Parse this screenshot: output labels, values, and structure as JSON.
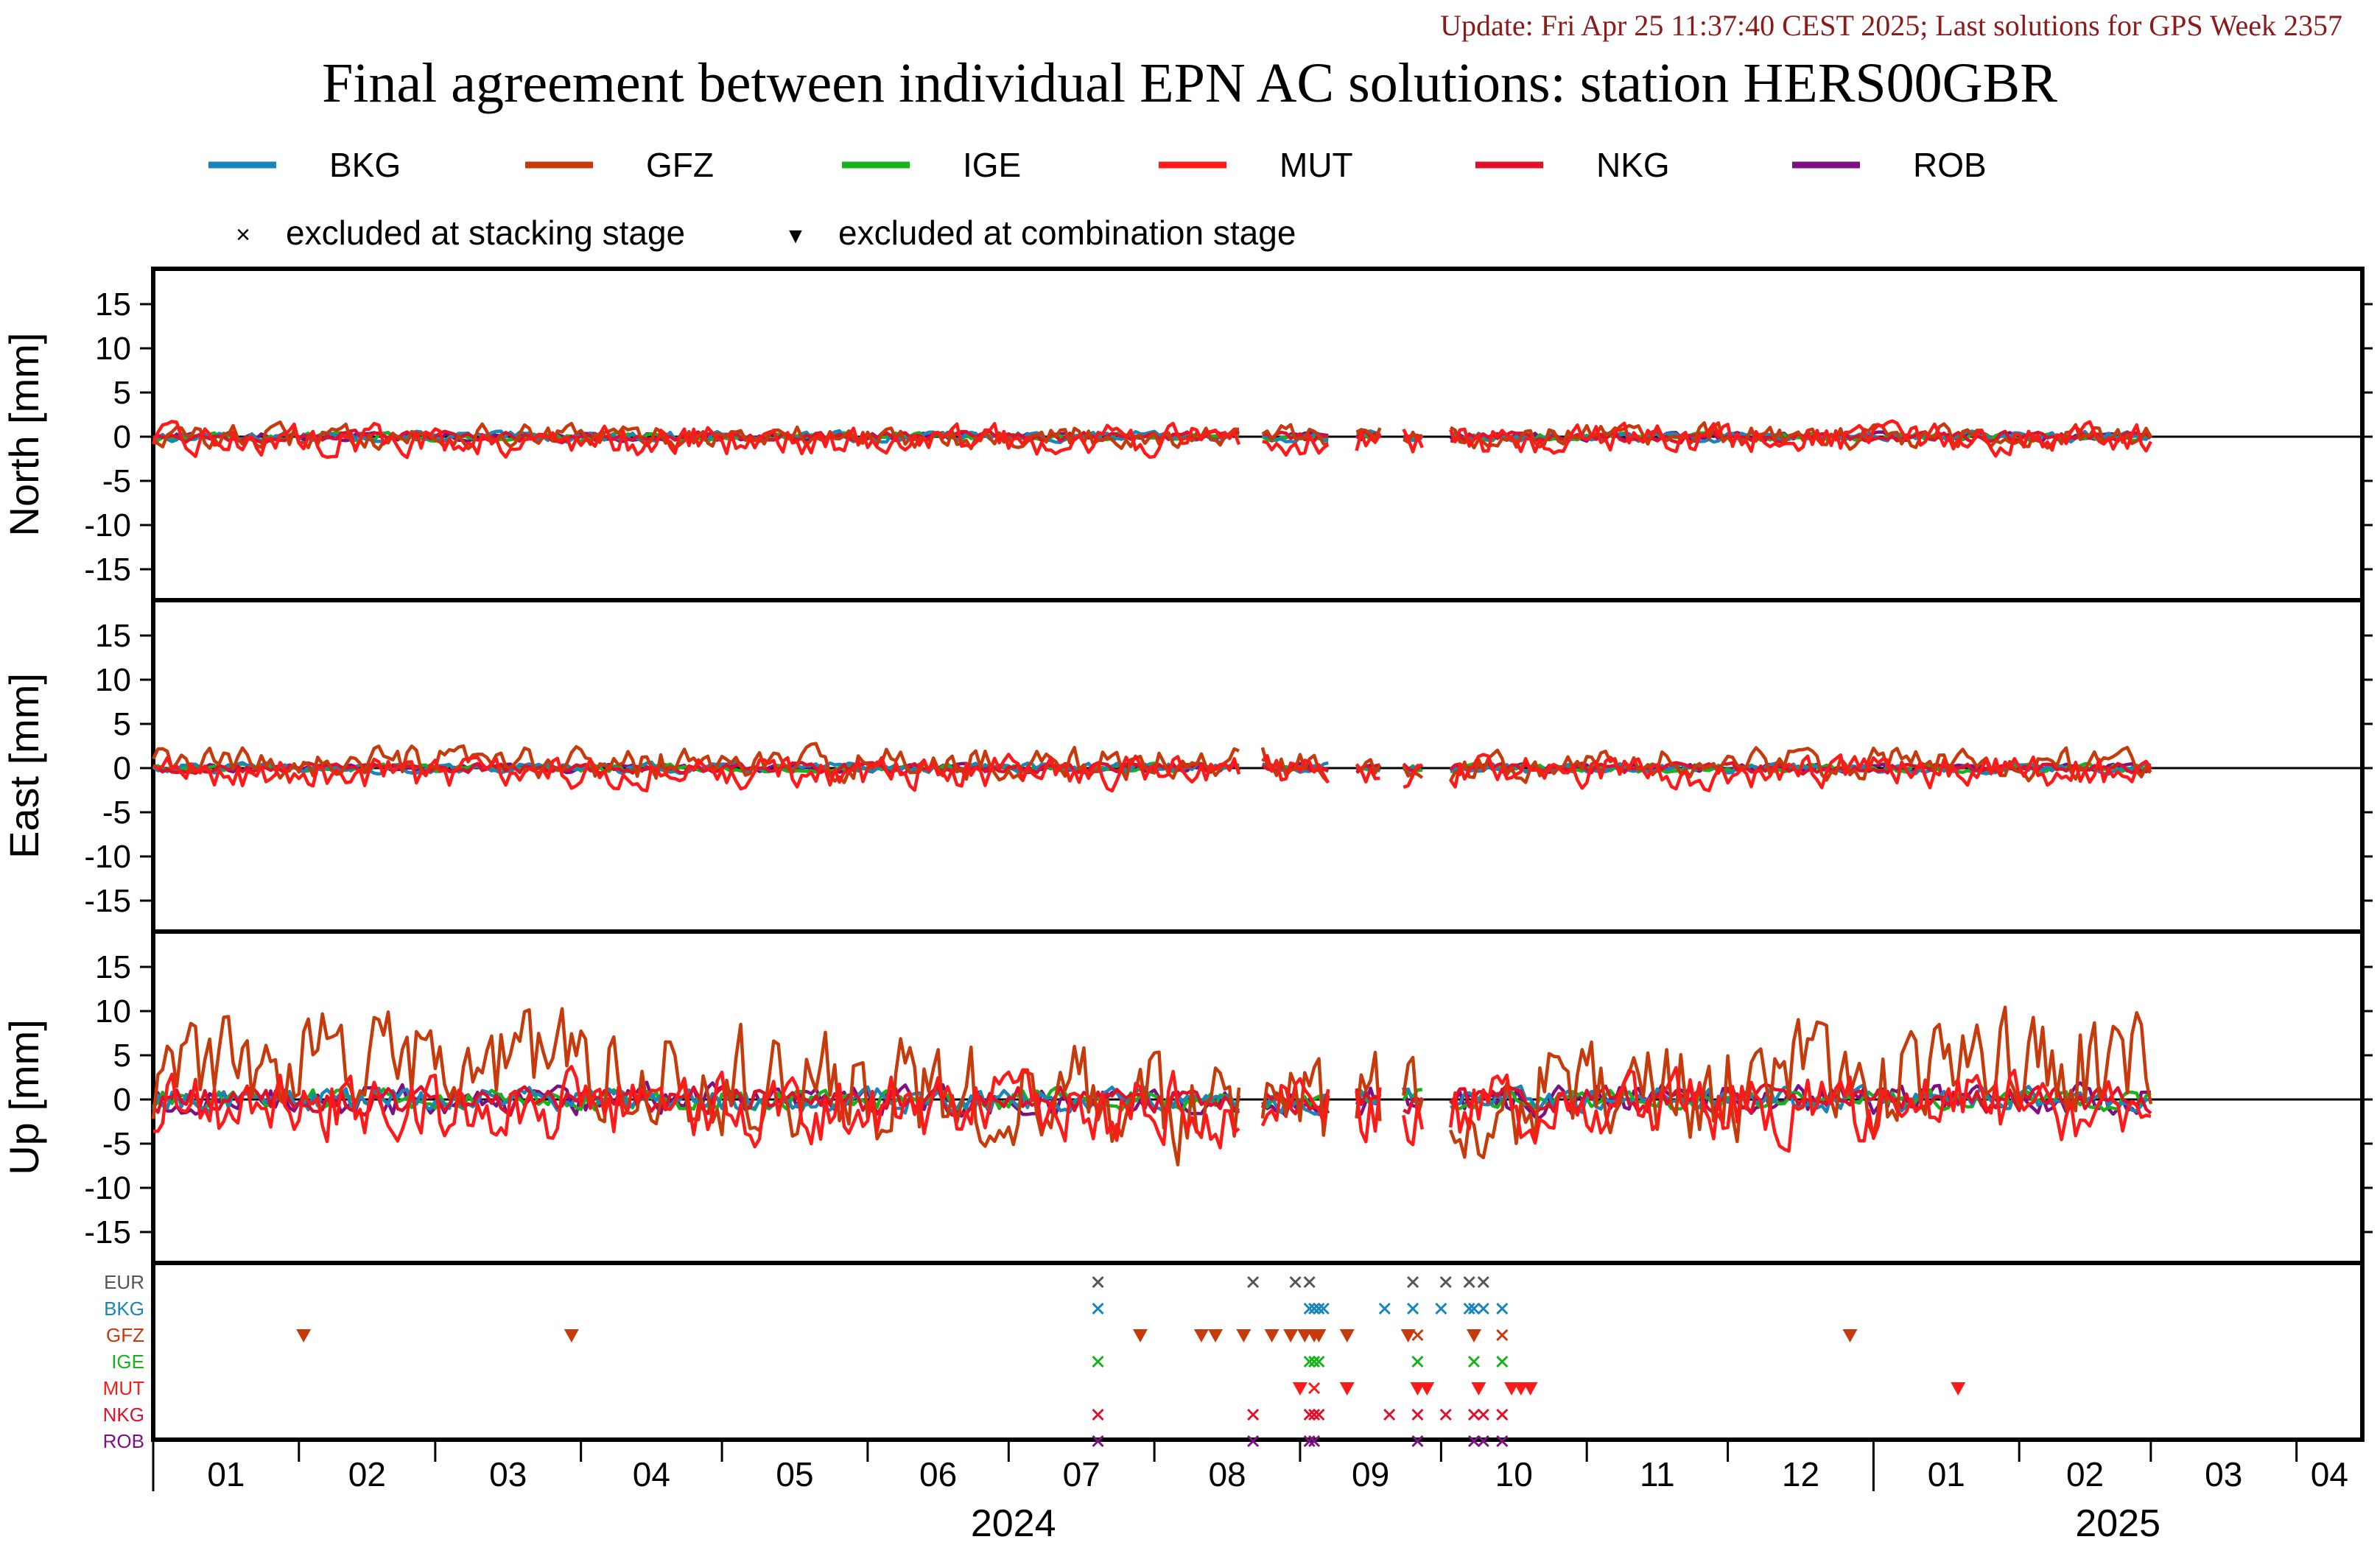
{
  "header": {
    "update_line": "Update: Fri Apr 25 11:37:40 CEST 2025; Last solutions for GPS Week 2357",
    "title": "Final agreement between individual EPN AC solutions: station HERS00GBR"
  },
  "legend": {
    "series": [
      {
        "name": "BKG",
        "color": "#1a85b8"
      },
      {
        "name": "GFZ",
        "color": "#c63a0b"
      },
      {
        "name": "IGE",
        "color": "#17b31a"
      },
      {
        "name": "MUT",
        "color": "#ff1a1a"
      },
      {
        "name": "NKG",
        "color": "#e0102b"
      },
      {
        "name": "ROB",
        "color": "#7d1083"
      }
    ],
    "markers": [
      {
        "symbol": "×",
        "label": "excluded at stacking stage"
      },
      {
        "symbol": "▼",
        "label": "excluded at combination stage"
      }
    ]
  },
  "chart_data": {
    "type": "line",
    "x_axis": {
      "start": "2024-01-01",
      "end": "2025-04-15",
      "month_ticks": [
        "01",
        "02",
        "03",
        "04",
        "05",
        "06",
        "07",
        "08",
        "09",
        "10",
        "11",
        "12",
        "01",
        "02",
        "03",
        "04"
      ],
      "year_labels": [
        "2024",
        "2025"
      ]
    },
    "panels": [
      {
        "ylabel": "North [mm]",
        "ylim": [
          -18.5,
          19
        ],
        "yticks": [
          15,
          10,
          5,
          0,
          -5,
          -10,
          -15
        ],
        "amplitude": {
          "BKG": 0.5,
          "GFZ": 1.2,
          "IGE": 0.4,
          "MUT": 1.5,
          "NKG": 0.5,
          "ROB": 0.4
        },
        "offset": {
          "BKG": 0,
          "GFZ": 0,
          "IGE": 0,
          "MUT": -0.4,
          "NKG": 0,
          "ROB": 0
        }
      },
      {
        "ylabel": "East [mm]",
        "ylim": [
          -18.5,
          19
        ],
        "yticks": [
          15,
          10,
          5,
          0,
          -5,
          -10,
          -15
        ],
        "amplitude": {
          "BKG": 0.5,
          "GFZ": 1.6,
          "IGE": 0.4,
          "MUT": 1.6,
          "NKG": 0.5,
          "ROB": 0.4
        },
        "offset": {
          "BKG": 0,
          "GFZ": 0.5,
          "IGE": 0,
          "MUT": -0.5,
          "NKG": 0,
          "ROB": 0
        }
      },
      {
        "ylabel": "Up [mm]",
        "ylim": [
          -18.5,
          19
        ],
        "yticks": [
          15,
          10,
          5,
          0,
          -5,
          -10,
          -15
        ],
        "amplitude": {
          "BKG": 1.2,
          "GFZ": 5.5,
          "IGE": 1.0,
          "MUT": 3.5,
          "NKG": 1.3,
          "ROB": 1.5
        },
        "offset": {
          "BKG": 0,
          "GFZ": 1.5,
          "IGE": 0,
          "MUT": -1.0,
          "NKG": 0,
          "ROB": 0
        }
      }
    ],
    "gaps": [
      [
        "2024-08-20",
        "2024-08-23"
      ],
      [
        "2024-09-08",
        "2024-09-12"
      ],
      [
        "2024-09-19",
        "2024-09-22"
      ],
      [
        "2024-09-28",
        "2024-10-02"
      ]
    ],
    "exclusion_panel": {
      "rows": [
        {
          "label": "EUR",
          "color": "#555555"
        },
        {
          "label": "BKG",
          "color": "#1a85b8"
        },
        {
          "label": "GFZ",
          "color": "#c63a0b"
        },
        {
          "label": "IGE",
          "color": "#17b31a"
        },
        {
          "label": "MUT",
          "color": "#ff1a1a"
        },
        {
          "label": "NKG",
          "color": "#e0102b"
        },
        {
          "label": "ROB",
          "color": "#7d1083"
        }
      ],
      "marks": [
        {
          "row": "EUR",
          "date": "2024-07-20",
          "type": "x"
        },
        {
          "row": "EUR",
          "date": "2024-08-22",
          "type": "x"
        },
        {
          "row": "EUR",
          "date": "2024-08-31",
          "type": "x"
        },
        {
          "row": "EUR",
          "date": "2024-09-03",
          "type": "x"
        },
        {
          "row": "EUR",
          "date": "2024-09-25",
          "type": "x"
        },
        {
          "row": "EUR",
          "date": "2024-10-02",
          "type": "x"
        },
        {
          "row": "EUR",
          "date": "2024-10-07",
          "type": "x"
        },
        {
          "row": "EUR",
          "date": "2024-10-10",
          "type": "x"
        },
        {
          "row": "BKG",
          "date": "2024-07-20",
          "type": "x"
        },
        {
          "row": "BKG",
          "date": "2024-09-03",
          "type": "x"
        },
        {
          "row": "BKG",
          "date": "2024-09-04",
          "type": "x"
        },
        {
          "row": "BKG",
          "date": "2024-09-05",
          "type": "x"
        },
        {
          "row": "BKG",
          "date": "2024-09-06",
          "type": "x"
        },
        {
          "row": "BKG",
          "date": "2024-09-19",
          "type": "x"
        },
        {
          "row": "BKG",
          "date": "2024-09-25",
          "type": "x"
        },
        {
          "row": "BKG",
          "date": "2024-10-01",
          "type": "x"
        },
        {
          "row": "BKG",
          "date": "2024-10-07",
          "type": "x"
        },
        {
          "row": "BKG",
          "date": "2024-10-08",
          "type": "x"
        },
        {
          "row": "BKG",
          "date": "2024-10-10",
          "type": "x"
        },
        {
          "row": "BKG",
          "date": "2024-10-14",
          "type": "x"
        },
        {
          "row": "GFZ",
          "date": "2024-02-02",
          "type": "v"
        },
        {
          "row": "GFZ",
          "date": "2024-03-30",
          "type": "v"
        },
        {
          "row": "GFZ",
          "date": "2024-07-29",
          "type": "v"
        },
        {
          "row": "GFZ",
          "date": "2024-08-11",
          "type": "v"
        },
        {
          "row": "GFZ",
          "date": "2024-08-14",
          "type": "v"
        },
        {
          "row": "GFZ",
          "date": "2024-08-20",
          "type": "v"
        },
        {
          "row": "GFZ",
          "date": "2024-08-26",
          "type": "v"
        },
        {
          "row": "GFZ",
          "date": "2024-08-30",
          "type": "v"
        },
        {
          "row": "GFZ",
          "date": "2024-09-02",
          "type": "v"
        },
        {
          "row": "GFZ",
          "date": "2024-09-04",
          "type": "v"
        },
        {
          "row": "GFZ",
          "date": "2024-09-05",
          "type": "v"
        },
        {
          "row": "GFZ",
          "date": "2024-09-11",
          "type": "v"
        },
        {
          "row": "GFZ",
          "date": "2024-09-24",
          "type": "v"
        },
        {
          "row": "GFZ",
          "date": "2024-09-26",
          "type": "x"
        },
        {
          "row": "GFZ",
          "date": "2024-10-08",
          "type": "v"
        },
        {
          "row": "GFZ",
          "date": "2024-10-14",
          "type": "x"
        },
        {
          "row": "GFZ",
          "date": "2024-12-27",
          "type": "v"
        },
        {
          "row": "IGE",
          "date": "2024-07-20",
          "type": "x"
        },
        {
          "row": "IGE",
          "date": "2024-09-03",
          "type": "x"
        },
        {
          "row": "IGE",
          "date": "2024-09-04",
          "type": "x"
        },
        {
          "row": "IGE",
          "date": "2024-09-05",
          "type": "x"
        },
        {
          "row": "IGE",
          "date": "2024-09-26",
          "type": "x"
        },
        {
          "row": "IGE",
          "date": "2024-10-08",
          "type": "x"
        },
        {
          "row": "IGE",
          "date": "2024-10-14",
          "type": "x"
        },
        {
          "row": "MUT",
          "date": "2024-09-01",
          "type": "v"
        },
        {
          "row": "MUT",
          "date": "2024-09-04",
          "type": "x"
        },
        {
          "row": "MUT",
          "date": "2024-09-11",
          "type": "v"
        },
        {
          "row": "MUT",
          "date": "2024-09-26",
          "type": "v"
        },
        {
          "row": "MUT",
          "date": "2024-09-28",
          "type": "v"
        },
        {
          "row": "MUT",
          "date": "2024-10-09",
          "type": "v"
        },
        {
          "row": "MUT",
          "date": "2024-10-16",
          "type": "v"
        },
        {
          "row": "MUT",
          "date": "2024-10-18",
          "type": "v"
        },
        {
          "row": "MUT",
          "date": "2024-10-20",
          "type": "v"
        },
        {
          "row": "MUT",
          "date": "2025-01-19",
          "type": "v"
        },
        {
          "row": "NKG",
          "date": "2024-07-20",
          "type": "x"
        },
        {
          "row": "NKG",
          "date": "2024-08-22",
          "type": "x"
        },
        {
          "row": "NKG",
          "date": "2024-09-03",
          "type": "x"
        },
        {
          "row": "NKG",
          "date": "2024-09-04",
          "type": "x"
        },
        {
          "row": "NKG",
          "date": "2024-09-05",
          "type": "x"
        },
        {
          "row": "NKG",
          "date": "2024-09-20",
          "type": "x"
        },
        {
          "row": "NKG",
          "date": "2024-09-26",
          "type": "x"
        },
        {
          "row": "NKG",
          "date": "2024-10-02",
          "type": "x"
        },
        {
          "row": "NKG",
          "date": "2024-10-08",
          "type": "x"
        },
        {
          "row": "NKG",
          "date": "2024-10-10",
          "type": "x"
        },
        {
          "row": "NKG",
          "date": "2024-10-14",
          "type": "x"
        },
        {
          "row": "ROB",
          "date": "2024-07-20",
          "type": "x"
        },
        {
          "row": "ROB",
          "date": "2024-08-22",
          "type": "x"
        },
        {
          "row": "ROB",
          "date": "2024-09-03",
          "type": "x"
        },
        {
          "row": "ROB",
          "date": "2024-09-04",
          "type": "x"
        },
        {
          "row": "ROB",
          "date": "2024-09-26",
          "type": "x"
        },
        {
          "row": "ROB",
          "date": "2024-10-08",
          "type": "x"
        },
        {
          "row": "ROB",
          "date": "2024-10-10",
          "type": "x"
        },
        {
          "row": "ROB",
          "date": "2024-10-14",
          "type": "x"
        }
      ]
    }
  }
}
